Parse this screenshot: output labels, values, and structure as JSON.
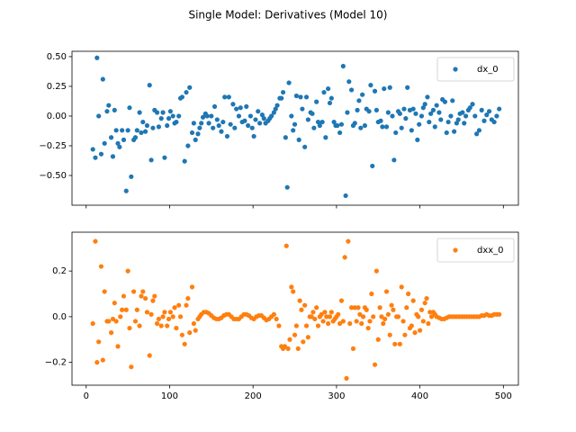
{
  "title": "Single Model: Derivatives (Model 10)",
  "chart_data": [
    {
      "type": "scatter",
      "legend": "upper right",
      "xtick_labels": false,
      "xlim": [
        -17,
        518
      ],
      "ylim": [
        -0.75,
        0.545
      ],
      "xticks": [
        0,
        100,
        200,
        300,
        400,
        500
      ],
      "yticks": [
        {
          "value": 0.5,
          "label": "0.50"
        },
        {
          "value": 0.25,
          "label": "0.25"
        },
        {
          "value": 0,
          "label": "0.00"
        },
        {
          "value": -0.25,
          "label": "−0.25"
        },
        {
          "value": -0.5,
          "label": "−0.50"
        }
      ],
      "x": [
        8,
        11,
        13,
        15,
        18,
        20,
        22,
        25,
        27,
        30,
        32,
        34,
        36,
        38,
        40,
        43,
        45,
        48,
        50,
        52,
        54,
        57,
        59,
        61,
        64,
        66,
        68,
        71,
        73,
        76,
        78,
        80,
        82,
        85,
        87,
        90,
        92,
        94,
        97,
        99,
        101,
        104,
        106,
        108,
        111,
        113,
        115,
        118,
        120,
        122,
        124,
        127,
        129,
        131,
        134,
        136,
        138,
        140,
        143,
        145,
        147,
        150,
        152,
        154,
        157,
        159,
        162,
        164,
        166,
        169,
        171,
        173,
        176,
        178,
        180,
        183,
        185,
        187,
        190,
        192,
        194,
        197,
        199,
        201,
        203,
        206,
        208,
        211,
        213,
        215,
        218,
        220,
        222,
        225,
        227,
        229,
        232,
        234,
        236,
        239,
        241,
        243,
        246,
        248,
        250,
        252,
        255,
        257,
        259,
        262,
        264,
        266,
        269,
        271,
        273,
        276,
        278,
        280,
        283,
        285,
        287,
        290,
        292,
        294,
        297,
        299,
        301,
        304,
        306,
        308,
        311,
        313,
        315,
        318,
        320,
        322,
        325,
        327,
        329,
        331,
        334,
        336,
        339,
        341,
        343,
        346,
        348,
        350,
        353,
        355,
        357,
        360,
        362,
        364,
        367,
        369,
        371,
        374,
        376,
        378,
        381,
        383,
        385,
        388,
        390,
        392,
        395,
        397,
        399,
        402,
        404,
        406,
        409,
        411,
        413,
        416,
        418,
        420,
        423,
        425,
        427,
        430,
        432,
        434,
        437,
        439,
        441,
        444,
        446,
        448,
        451,
        453,
        455,
        458,
        460,
        463,
        466,
        468,
        471,
        474,
        477,
        480,
        483,
        486,
        489,
        492,
        495
      ],
      "series": [
        {
          "name": "dx_0",
          "color": "#1f77b4",
          "values": [
            -0.28,
            -0.35,
            0.49,
            0.0,
            -0.32,
            0.31,
            -0.23,
            0.04,
            0.09,
            -0.18,
            -0.34,
            0.05,
            -0.12,
            -0.23,
            -0.26,
            -0.12,
            -0.2,
            -0.63,
            -0.12,
            0.07,
            -0.51,
            -0.2,
            -0.18,
            -0.12,
            0.03,
            -0.14,
            -0.05,
            -0.13,
            -0.08,
            0.26,
            -0.37,
            -0.1,
            0.05,
            0.03,
            -0.09,
            -0.02,
            0.03,
            -0.35,
            -0.08,
            -0.02,
            0.04,
            0.0,
            -0.06,
            -0.05,
            0.0,
            0.15,
            0.16,
            -0.38,
            0.2,
            -0.25,
            0.24,
            -0.14,
            -0.06,
            -0.2,
            -0.15,
            -0.1,
            -0.06,
            -0.01,
            0.02,
            0.0,
            -0.06,
            0.0,
            -0.1,
            0.08,
            -0.03,
            -0.08,
            -0.13,
            -0.05,
            0.16,
            -0.17,
            0.16,
            -0.07,
            0.1,
            -0.1,
            0.06,
            0.0,
            0.07,
            -0.05,
            -0.04,
            0.08,
            -0.08,
            0.0,
            -0.1,
            -0.17,
            -0.03,
            0.04,
            -0.06,
            0.01,
            -0.02,
            -0.06,
            -0.04,
            -0.02,
            0.0,
            0.03,
            0.06,
            0.09,
            0.15,
            0.15,
            0.2,
            -0.18,
            -0.6,
            0.28,
            0.0,
            -0.12,
            -0.07,
            0.17,
            -0.2,
            0.16,
            0.06,
            -0.26,
            0.16,
            -0.03,
            0.03,
            0.02,
            -0.1,
            0.12,
            -0.05,
            -0.08,
            -0.05,
            0.2,
            -0.18,
            0.23,
            0.11,
            0.15,
            -0.05,
            -0.08,
            -0.08,
            -0.14,
            -0.07,
            0.42,
            -0.67,
            0.03,
            0.29,
            0.22,
            -0.08,
            -0.06,
            0.05,
            0.13,
            -0.1,
            0.18,
            -0.08,
            0.06,
            0.04,
            0.26,
            -0.42,
            0.21,
            0.05,
            -0.05,
            -0.04,
            -0.09,
            0.23,
            -0.09,
            0.03,
            0.24,
            0.0,
            -0.37,
            -0.14,
            0.04,
            0.02,
            -0.1,
            0.06,
            -0.02,
            0.24,
            0.05,
            -0.12,
            0.06,
            0.02,
            -0.2,
            -0.07,
            0.0,
            0.07,
            0.1,
            0.16,
            -0.05,
            0.02,
            0.05,
            -0.09,
            0.09,
            0.03,
            -0.03,
            0.14,
            0.12,
            -0.14,
            -0.05,
            0.0,
            0.13,
            -0.13,
            -0.06,
            -0.03,
            0.02,
            0.03,
            -0.06,
            0.0,
            0.05,
            0.07,
            0.1,
            0.0,
            -0.15,
            -0.12,
            0.05,
            -0.04,
            0.01,
            0.04,
            -0.03,
            -0.05,
            0.0,
            0.06
          ]
        }
      ]
    },
    {
      "type": "scatter",
      "legend": "upper right",
      "xtick_labels": true,
      "xlim": [
        -17,
        518
      ],
      "ylim": [
        -0.3,
        0.37
      ],
      "xticks": [
        0,
        100,
        200,
        300,
        400,
        500
      ],
      "yticks": [
        {
          "value": 0.2,
          "label": "0.2"
        },
        {
          "value": 0,
          "label": "0.0"
        },
        {
          "value": -0.2,
          "label": "−0.2"
        }
      ],
      "x": [
        8,
        11,
        13,
        15,
        18,
        20,
        22,
        25,
        27,
        30,
        32,
        34,
        36,
        38,
        41,
        43,
        45,
        48,
        50,
        52,
        54,
        57,
        59,
        61,
        64,
        66,
        68,
        71,
        73,
        76,
        78,
        80,
        82,
        85,
        87,
        90,
        92,
        94,
        97,
        99,
        101,
        104,
        106,
        108,
        111,
        113,
        115,
        118,
        120,
        122,
        124,
        127,
        129,
        131,
        134,
        136,
        138,
        141,
        144,
        147,
        150,
        153,
        156,
        159,
        162,
        165,
        168,
        171,
        174,
        177,
        180,
        183,
        186,
        189,
        192,
        195,
        198,
        201,
        204,
        207,
        210,
        213,
        216,
        219,
        222,
        225,
        228,
        231,
        234,
        236,
        238,
        240,
        242,
        244,
        246,
        248,
        250,
        252,
        254,
        256,
        258,
        260,
        262,
        264,
        266,
        268,
        270,
        272,
        274,
        276,
        278,
        280,
        282,
        284,
        286,
        288,
        290,
        292,
        294,
        296,
        298,
        300,
        302,
        304,
        306,
        308,
        310,
        312,
        314,
        316,
        318,
        320,
        322,
        324,
        326,
        328,
        330,
        332,
        334,
        336,
        338,
        340,
        342,
        344,
        346,
        348,
        350,
        352,
        354,
        356,
        358,
        360,
        362,
        364,
        366,
        368,
        370,
        372,
        374,
        376,
        378,
        380,
        382,
        384,
        386,
        388,
        390,
        392,
        394,
        396,
        398,
        400,
        402,
        404,
        406,
        408,
        410,
        412,
        414,
        416,
        418,
        420,
        423,
        426,
        429,
        432,
        435,
        438,
        441,
        444,
        447,
        450,
        453,
        456,
        459,
        462,
        465,
        468,
        471,
        474,
        477,
        480,
        483,
        486,
        489,
        492,
        495
      ],
      "series": [
        {
          "name": "dxx_0",
          "color": "#ff7f0e",
          "values": [
            -0.03,
            0.33,
            -0.2,
            -0.11,
            0.22,
            -0.19,
            0.11,
            -0.02,
            -0.02,
            -0.07,
            -0.01,
            0.06,
            -0.02,
            -0.13,
            0.0,
            0.03,
            0.09,
            0.03,
            0.2,
            -0.05,
            -0.22,
            0.11,
            -0.02,
            0.03,
            -0.04,
            0.09,
            0.11,
            0.08,
            0.02,
            -0.17,
            0.01,
            0.07,
            0.09,
            -0.03,
            -0.01,
            -0.04,
            0.0,
            0.02,
            -0.04,
            -0.01,
            0.02,
            0.0,
            0.04,
            -0.05,
            0.05,
            0.0,
            -0.08,
            -0.12,
            0.05,
            0.08,
            -0.07,
            0.13,
            -0.03,
            -0.06,
            -0.01,
            0.0,
            0.01,
            0.02,
            0.02,
            0.015,
            0.005,
            -0.005,
            -0.01,
            -0.01,
            -0.005,
            0.005,
            0.01,
            0.01,
            0.0,
            -0.01,
            -0.01,
            -0.01,
            0.0,
            0.01,
            0.01,
            0.005,
            -0.005,
            -0.01,
            0.0,
            0.005,
            0.005,
            -0.005,
            -0.015,
            -0.01,
            0.0,
            0.01,
            -0.01,
            -0.04,
            -0.13,
            -0.14,
            -0.13,
            0.31,
            -0.14,
            -0.1,
            0.13,
            0.11,
            -0.08,
            -0.04,
            -0.14,
            0.07,
            0.03,
            -0.11,
            0.05,
            -0.04,
            -0.09,
            0.0,
            0.0,
            0.02,
            -0.01,
            0.04,
            -0.04,
            0.0,
            0.01,
            -0.02,
            0.02,
            0.0,
            -0.03,
            0.0,
            0.02,
            -0.02,
            -0.01,
            0.0,
            0.01,
            -0.03,
            0.07,
            -0.02,
            0.26,
            -0.27,
            0.33,
            -0.03,
            0.04,
            -0.14,
            0.04,
            -0.02,
            0.04,
            0.01,
            -0.03,
            0.0,
            0.04,
            0.03,
            -0.05,
            -0.02,
            0.1,
            0.0,
            -0.21,
            0.2,
            -0.1,
            0.04,
            0.0,
            -0.03,
            -0.01,
            0.11,
            0.01,
            -0.08,
            0.05,
            0.03,
            -0.12,
            0.0,
            0.0,
            -0.12,
            0.13,
            -0.02,
            -0.08,
            0.04,
            0.1,
            -0.05,
            -0.04,
            0.07,
            -0.07,
            0.01,
            0.0,
            -0.06,
            0.03,
            -0.02,
            0.06,
            0.08,
            -0.03,
            0.02,
            0.0,
            0.02,
            0.01,
            0.0,
            -0.005,
            -0.01,
            -0.01,
            -0.005,
            0.0,
            0.0,
            0.0,
            0.0,
            0.0,
            0.0,
            0.0,
            0.0,
            0.0,
            0.0,
            0.0,
            0.0,
            0.0,
            0.005,
            0.005,
            0.01,
            0.005,
            0.005,
            0.01,
            0.01,
            0.01
          ]
        }
      ]
    }
  ]
}
